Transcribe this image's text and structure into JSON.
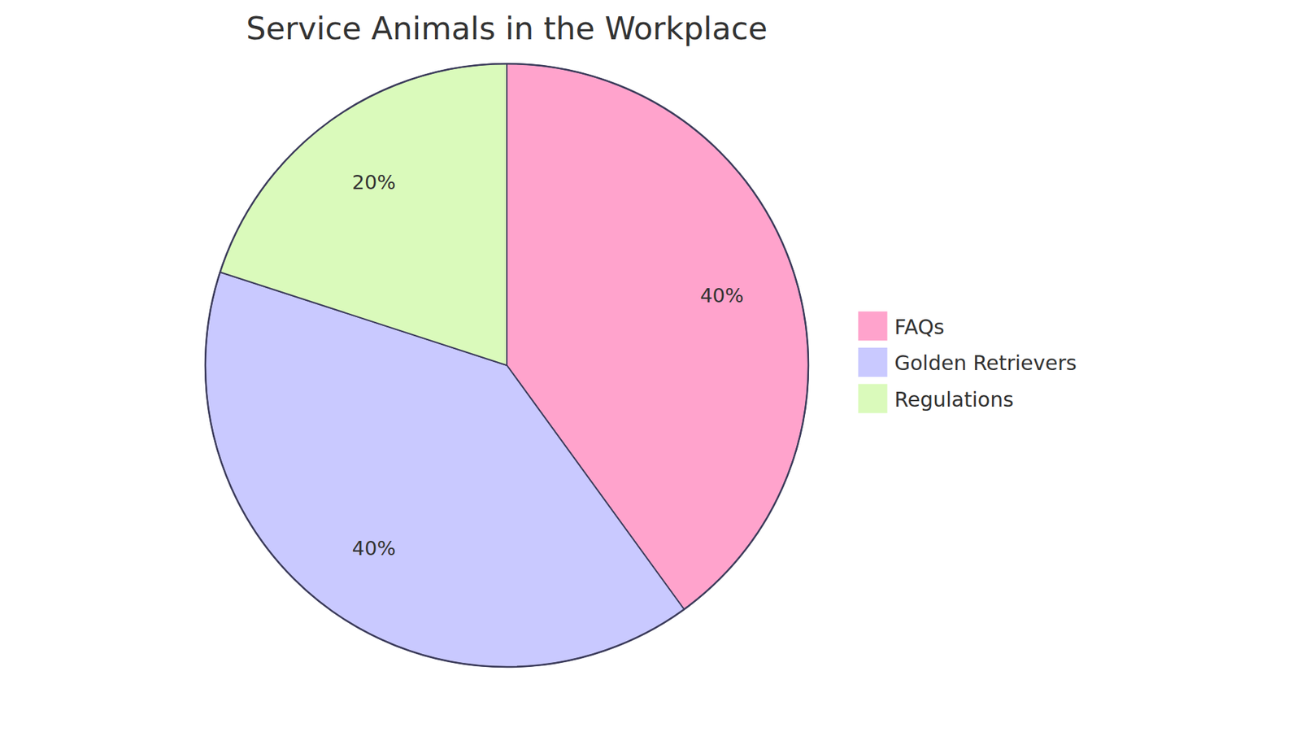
{
  "chart_data": {
    "type": "pie",
    "title": "Service Animals in the Workplace",
    "categories": [
      "FAQs",
      "Golden Retrievers",
      "Regulations"
    ],
    "values": [
      40,
      40,
      20
    ],
    "value_labels": [
      "40%",
      "40%",
      "20%"
    ],
    "colors": [
      "#ffa3cc",
      "#c9c9ff",
      "#dafabb"
    ],
    "data_labels": true,
    "legend": "right"
  }
}
